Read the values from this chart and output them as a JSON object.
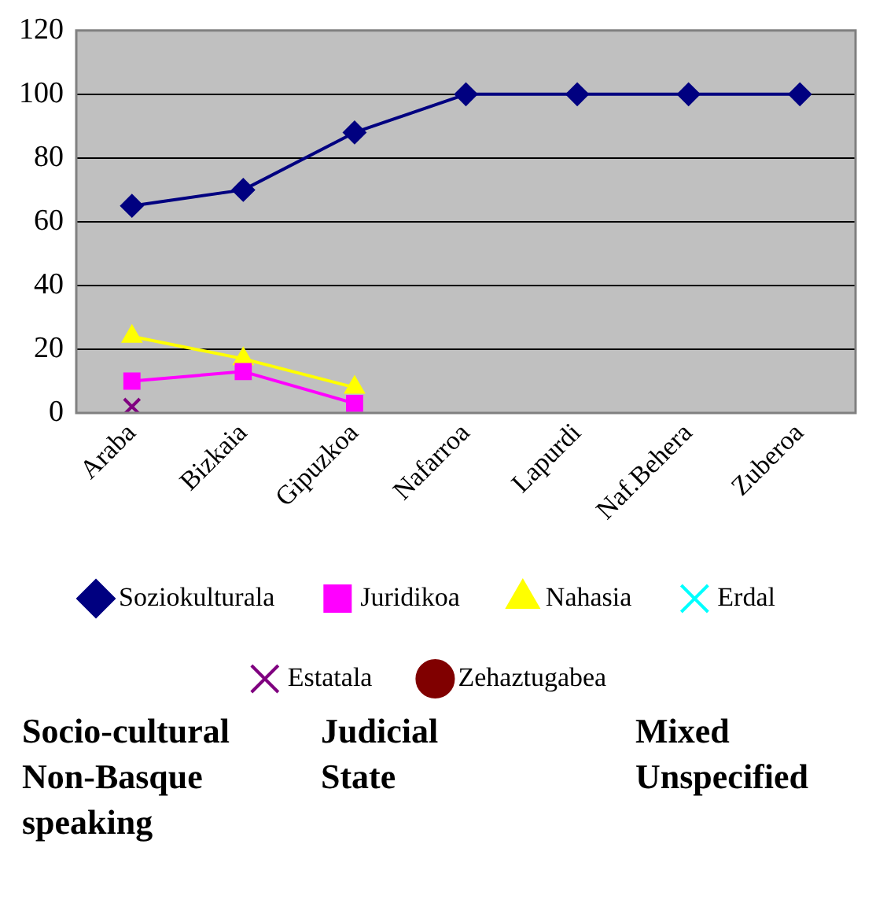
{
  "chart_data": {
    "type": "line",
    "categories": [
      "Araba",
      "Bizkaia",
      "Gipuzkoa",
      "Nafarroa",
      "Lapurdi",
      "Naf.Behera",
      "Zuberoa"
    ],
    "series": [
      {
        "name": "Soziokulturala",
        "color": "#000080",
        "marker": "diamond",
        "values": [
          65,
          70,
          88,
          100,
          100,
          100,
          100
        ]
      },
      {
        "name": "Juridikoa",
        "color": "#ff00ff",
        "marker": "square",
        "values": [
          10,
          13,
          3,
          null,
          null,
          null,
          null
        ]
      },
      {
        "name": "Nahasia",
        "color": "#ffff00",
        "marker": "triangle",
        "values": [
          24,
          17,
          8,
          null,
          null,
          null,
          null
        ]
      },
      {
        "name": "Erdal",
        "color": "#00ffff",
        "marker": "cross",
        "values": [
          null,
          null,
          null,
          null,
          null,
          null,
          null
        ]
      },
      {
        "name": "Estatala",
        "color": "#800080",
        "marker": "cross",
        "values": [
          2,
          null,
          null,
          null,
          null,
          null,
          null
        ]
      },
      {
        "name": "Zehaztugabea",
        "color": "#800000",
        "marker": "circle",
        "values": [
          null,
          null,
          null,
          null,
          null,
          null,
          null
        ]
      }
    ],
    "ylim": [
      0,
      120
    ],
    "yticks": [
      0,
      20,
      40,
      60,
      80,
      100,
      120
    ],
    "grid": "y",
    "legend": "bottom",
    "annotations": [
      "Socio-cultural",
      "Judicial",
      "Mixed",
      "Non-Basque speaking",
      "State",
      "Unspecified"
    ]
  }
}
